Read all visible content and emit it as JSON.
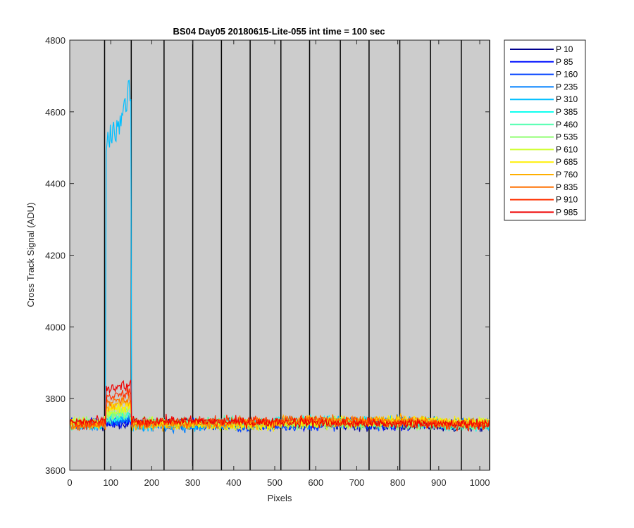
{
  "chart_data": {
    "type": "line",
    "title": "BS04 Day05 20180615-Lite-055 int time = 100 sec",
    "xlabel": "Pixels",
    "ylabel": "Cross Track Signal (ADU)",
    "xlim": [
      0,
      1024
    ],
    "ylim": [
      3600,
      4800
    ],
    "xticks": [
      0,
      100,
      200,
      300,
      400,
      500,
      600,
      700,
      800,
      900,
      1000
    ],
    "yticks": [
      3600,
      3800,
      4000,
      4200,
      4400,
      4600,
      4800
    ],
    "background": "#cccccc",
    "tap_boundaries": [
      85,
      150,
      230,
      300,
      370,
      440,
      515,
      585,
      660,
      730,
      805,
      880,
      955,
      1024
    ],
    "legend_position": "outside-right",
    "series": [
      {
        "name": "P 10",
        "color": "#00008F",
        "base": 3725,
        "bump_mean": 3725
      },
      {
        "name": "P 85",
        "color": "#0010FF",
        "base": 3727,
        "bump_mean": 3722
      },
      {
        "name": "P 160",
        "color": "#0040FF",
        "base": 3726,
        "bump_mean": 3730
      },
      {
        "name": "P 235",
        "color": "#0080FF",
        "base": 3727,
        "bump_mean": 3735
      },
      {
        "name": "P 310",
        "color": "#00BFFF",
        "base": 3728,
        "bump_mean": 4550
      },
      {
        "name": "P 385",
        "color": "#10FFEF",
        "base": 3729,
        "bump_mean": 3740
      },
      {
        "name": "P 460",
        "color": "#50FFAF",
        "base": 3729,
        "bump_mean": 3745
      },
      {
        "name": "P 535",
        "color": "#8FFF70",
        "base": 3730,
        "bump_mean": 3750
      },
      {
        "name": "P 610",
        "color": "#CFFF30",
        "base": 3730,
        "bump_mean": 3760
      },
      {
        "name": "P 685",
        "color": "#FFEF00",
        "base": 3731,
        "bump_mean": 3770
      },
      {
        "name": "P 760",
        "color": "#FFAF00",
        "base": 3730,
        "bump_mean": 3780
      },
      {
        "name": "P 835",
        "color": "#FF7000",
        "base": 3731,
        "bump_mean": 3790
      },
      {
        "name": "P 910",
        "color": "#FF3000",
        "base": 3732,
        "bump_mean": 3805
      },
      {
        "name": "P 985",
        "color": "#EF0000",
        "base": 3732,
        "bump_mean": 3825
      }
    ]
  }
}
